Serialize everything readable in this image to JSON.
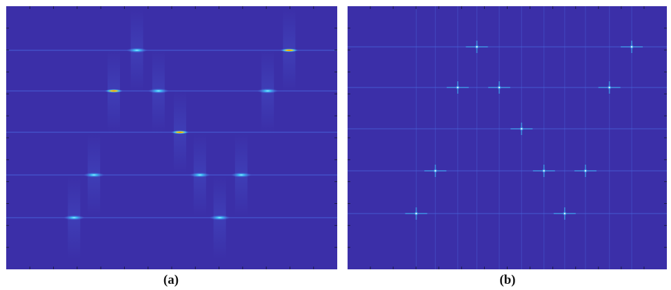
{
  "colors": {
    "background": "#3b2fa8",
    "ridge": "#4a6ae0",
    "glow": "#3dd0ff",
    "hot": "#ffd400",
    "hot_core": "#ff4a00",
    "tick": "#1c1c44"
  },
  "panel_a": {
    "caption": "(a)",
    "rows": [
      1,
      2,
      3,
      4,
      5
    ],
    "spots": [
      {
        "u": 0.395,
        "row": 1,
        "kind": "glow"
      },
      {
        "u": 0.855,
        "row": 1,
        "kind": "hot"
      },
      {
        "u": 0.325,
        "row": 2,
        "kind": "hot"
      },
      {
        "u": 0.46,
        "row": 2,
        "kind": "glow"
      },
      {
        "u": 0.79,
        "row": 2,
        "kind": "glow"
      },
      {
        "u": 0.525,
        "row": 3,
        "kind": "hot"
      },
      {
        "u": 0.265,
        "row": 4,
        "kind": "glow"
      },
      {
        "u": 0.585,
        "row": 4,
        "kind": "glow"
      },
      {
        "u": 0.71,
        "row": 4,
        "kind": "glow"
      },
      {
        "u": 0.205,
        "row": 5,
        "kind": "glow"
      },
      {
        "u": 0.645,
        "row": 5,
        "kind": "glow"
      }
    ]
  },
  "panel_b": {
    "caption": "(b)",
    "rows": [
      1,
      2,
      3,
      4,
      5
    ],
    "spots": [
      {
        "u": 0.405,
        "row": 1
      },
      {
        "u": 0.89,
        "row": 1
      },
      {
        "u": 0.345,
        "row": 2
      },
      {
        "u": 0.475,
        "row": 2
      },
      {
        "u": 0.82,
        "row": 2
      },
      {
        "u": 0.545,
        "row": 3
      },
      {
        "u": 0.275,
        "row": 4
      },
      {
        "u": 0.615,
        "row": 4
      },
      {
        "u": 0.745,
        "row": 4
      },
      {
        "u": 0.215,
        "row": 5
      },
      {
        "u": 0.68,
        "row": 5
      }
    ]
  }
}
